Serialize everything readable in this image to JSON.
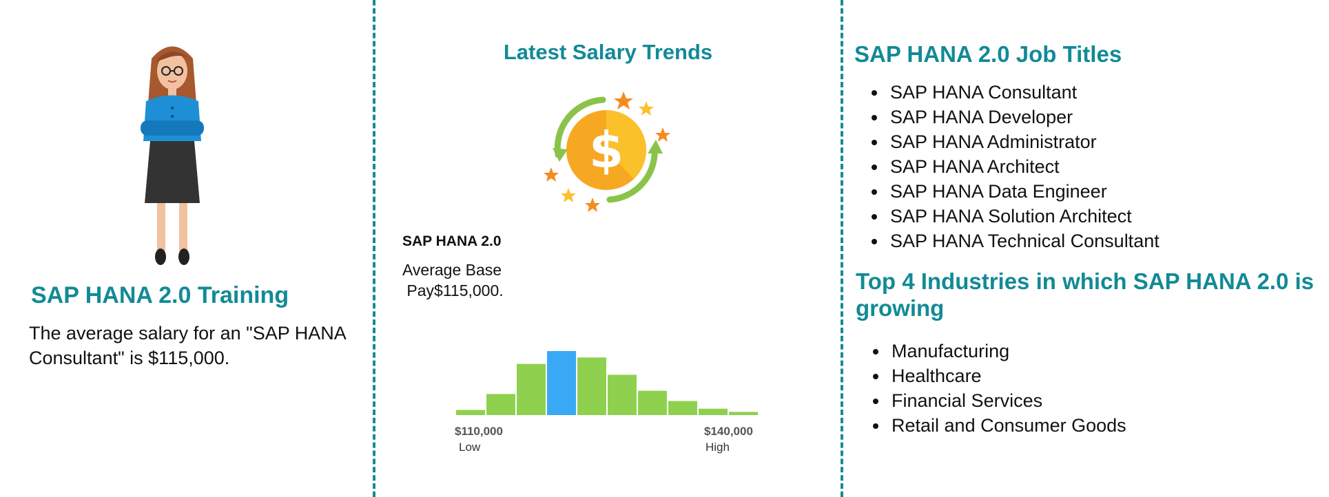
{
  "left": {
    "training_title": "SAP HANA 2.0 Training",
    "training_text": "The average salary for an \"SAP HANA Consultant\" is $115,000."
  },
  "middle": {
    "trends_title": "Latest Salary Trends",
    "salary_label": "SAP HANA 2.0",
    "avg_base_line1": "Average Base",
    "avg_base_line2": " Pay$115,000.",
    "histogram": {
      "bars": [
        0.08,
        0.33,
        0.8,
        1.0,
        0.9,
        0.63,
        0.38,
        0.22,
        0.1,
        0.05
      ],
      "highlight_index": 3,
      "bar_color": "#8fd14f",
      "highlight_color": "#3aa9f5",
      "low_value": "$110,000",
      "low_label": "Low",
      "high_value": "$140,000",
      "high_label": "High"
    }
  },
  "right": {
    "job_titles_heading": "SAP HANA 2.0 Job Titles",
    "job_titles": [
      "SAP HANA Consultant",
      "SAP HANA Developer",
      "SAP HANA Administrator",
      "SAP HANA Architect",
      "SAP HANA Data Engineer",
      "SAP HANA Solution Architect",
      "SAP HANA Technical Consultant"
    ],
    "industries_heading": "Top 4 Industries in which SAP HANA 2.0 is growing",
    "industries": [
      "Manufacturing",
      "Healthcare",
      "Financial Services",
      "Retail and Consumer Goods"
    ]
  },
  "colors": {
    "accent": "#128a96",
    "divider": "#1a8a92"
  }
}
